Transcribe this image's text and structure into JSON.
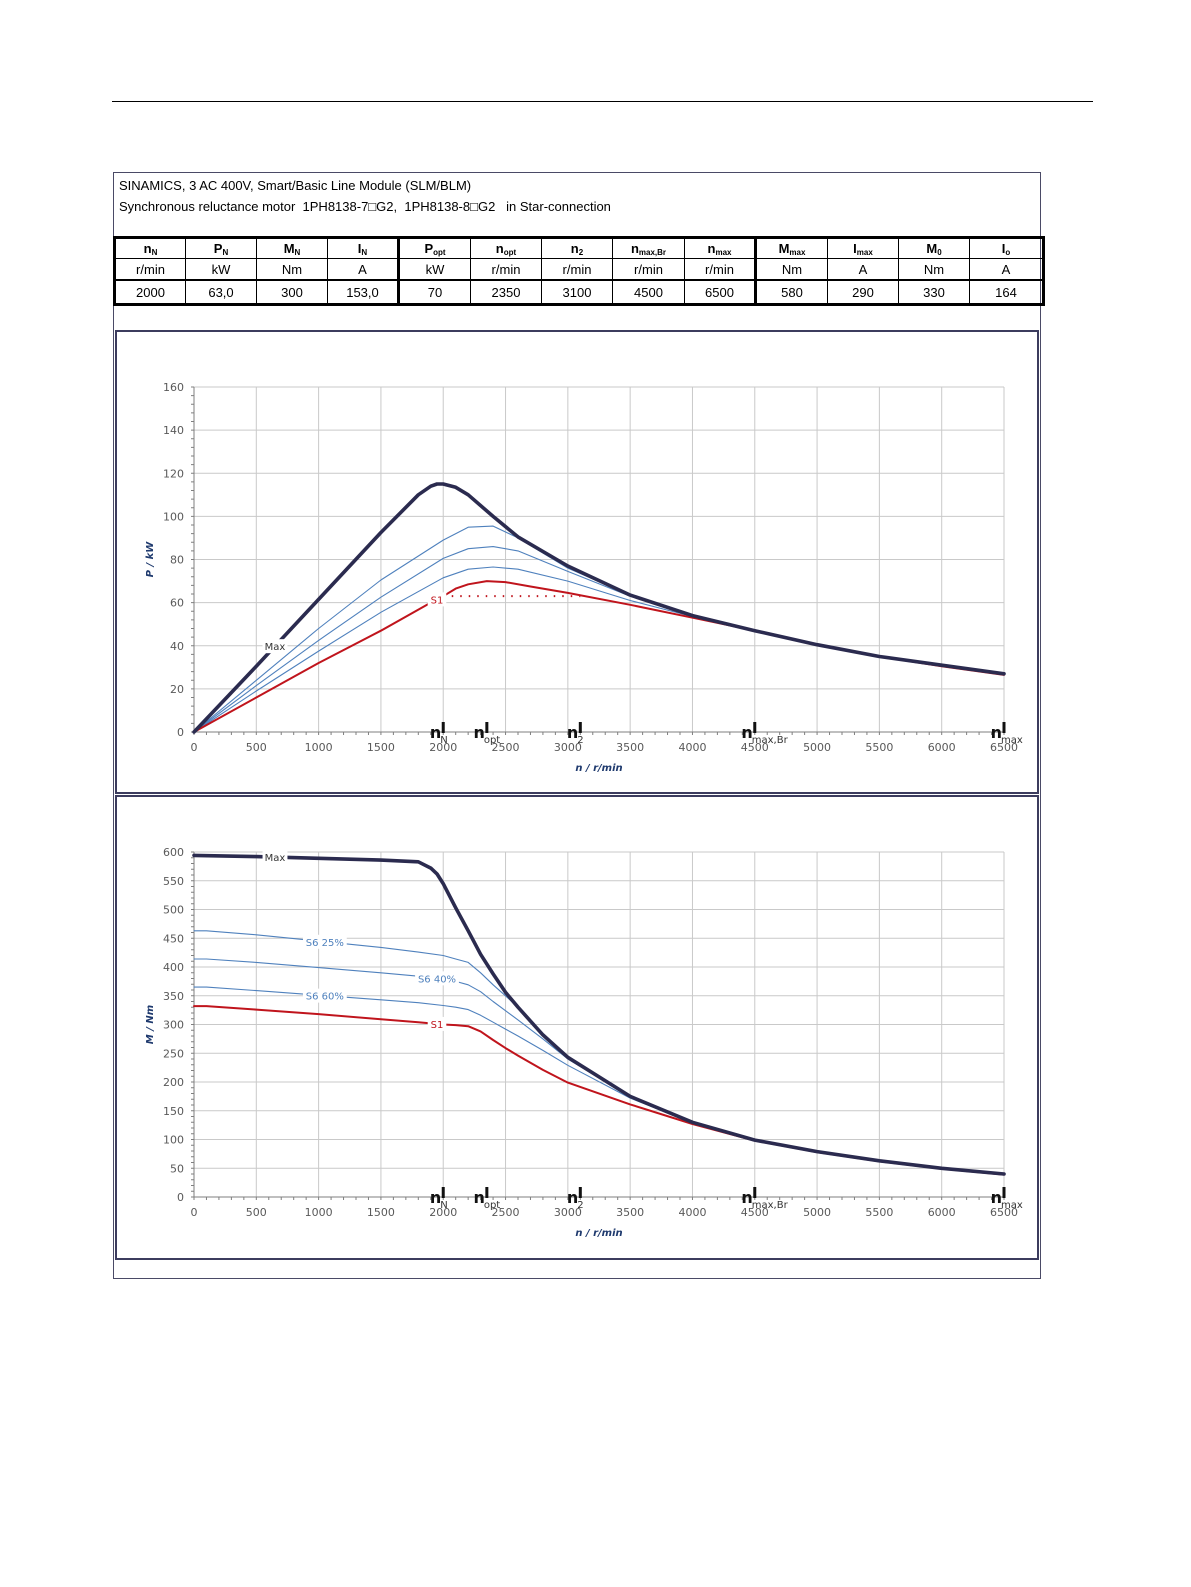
{
  "header": {
    "line1": "SINAMICS, 3 AC 400V, Smart/Basic Line Module (SLM/BLM)",
    "line2": "Synchronous reluctance motor  1PH8138-7□G2,  1PH8138-8□G2   in Star-connection"
  },
  "table": {
    "columns": [
      {
        "sym": "n",
        "sub": "N",
        "unit": "r/min",
        "value": "2000"
      },
      {
        "sym": "P",
        "sub": "N",
        "unit": "kW",
        "value": "63,0"
      },
      {
        "sym": "M",
        "sub": "N",
        "unit": "Nm",
        "value": "300"
      },
      {
        "sym": "I",
        "sub": "N",
        "unit": "A",
        "value": "153,0"
      },
      {
        "sym": "P",
        "sub": "opt",
        "unit": "kW",
        "value": "70"
      },
      {
        "sym": "n",
        "sub": "opt",
        "unit": "r/min",
        "value": "2350"
      },
      {
        "sym": "n",
        "sub": "2",
        "unit": "r/min",
        "value": "3100"
      },
      {
        "sym": "n",
        "sub": "max,Br",
        "unit": "r/min",
        "value": "4500"
      },
      {
        "sym": "n",
        "sub": "max",
        "unit": "r/min",
        "value": "6500"
      },
      {
        "sym": "M",
        "sub": "max",
        "unit": "Nm",
        "value": "580"
      },
      {
        "sym": "I",
        "sub": "max",
        "unit": "A",
        "value": "290"
      },
      {
        "sym": "M",
        "sub": "0",
        "unit": "Nm",
        "value": "330"
      },
      {
        "sym": "I",
        "sub": "o",
        "unit": "A",
        "value": "164"
      }
    ]
  },
  "colors": {
    "max": "#2b2b4f",
    "s6": "#4f81bd",
    "s1": "#c0141c",
    "grid": "#c9c9c9",
    "axis": "#1f3a6e"
  },
  "chart_data": [
    {
      "type": "line",
      "xlabel": "n / r/min",
      "ylabel": "P / kW",
      "xlim": [
        0,
        6500
      ],
      "ylim": [
        0,
        160
      ],
      "xticks": [
        0,
        500,
        1000,
        1500,
        2000,
        2500,
        3000,
        3500,
        4000,
        4500,
        5000,
        5500,
        6000,
        6500
      ],
      "yticks": [
        0,
        20,
        40,
        60,
        80,
        100,
        120,
        140,
        160
      ],
      "grid": true,
      "markers": [
        {
          "big": "n",
          "sub": "N",
          "x": 2000
        },
        {
          "big": "n",
          "sub": "opt",
          "x": 2350
        },
        {
          "big": "n",
          "sub": "2",
          "x": 3100
        },
        {
          "big": "n",
          "sub": "max,Br",
          "x": 4500
        },
        {
          "big": "n",
          "sub": "max",
          "x": 6500
        }
      ],
      "series": [
        {
          "name": "Max",
          "style": "max",
          "x": [
            0,
            500,
            1000,
            1500,
            1800,
            1900,
            1950,
            2000,
            2100,
            2200,
            2400,
            2600,
            3000,
            3500,
            4000,
            4500,
            5000,
            5500,
            6000,
            6500
          ],
          "y": [
            0,
            30.5,
            61.5,
            92.5,
            110,
            114,
            115,
            115,
            113.5,
            110,
            100,
            90.5,
            77,
            63.5,
            54,
            47,
            40.5,
            35,
            31,
            27
          ]
        },
        {
          "name": "S6 25%",
          "style": "s6",
          "x": [
            0,
            500,
            1000,
            1500,
            2000,
            2200,
            2400,
            2600,
            3000,
            3500,
            4000,
            4500,
            5000,
            5500,
            6000,
            6500
          ],
          "y": [
            0,
            24,
            48,
            70.5,
            89,
            95,
            95.5,
            90,
            76,
            63.5,
            54,
            47,
            40.5,
            35,
            31,
            27
          ]
        },
        {
          "name": "S6 40%",
          "style": "s6",
          "x": [
            0,
            500,
            1000,
            1500,
            2000,
            2200,
            2400,
            2600,
            3000,
            3500,
            4000,
            4500,
            5000,
            5500,
            6000,
            6500
          ],
          "y": [
            0,
            21.5,
            42.5,
            62.5,
            80.5,
            85,
            86,
            84,
            74.5,
            63,
            54,
            47,
            40.5,
            35,
            31,
            27
          ]
        },
        {
          "name": "S6 60%",
          "style": "s6",
          "x": [
            0,
            500,
            1000,
            1500,
            2000,
            2200,
            2400,
            2600,
            3000,
            3500,
            4000,
            4500,
            5000,
            5500,
            6000,
            6500
          ],
          "y": [
            0,
            19,
            37.5,
            55.5,
            71.5,
            75.5,
            76.5,
            75.5,
            70,
            61,
            53.5,
            47,
            40.5,
            35,
            31,
            27
          ]
        },
        {
          "name": "S1",
          "style": "s1",
          "x": [
            0,
            500,
            1000,
            1500,
            1900,
            2000,
            2100,
            2200,
            2350,
            2500,
            2700,
            3000,
            3500,
            4000,
            4500,
            5000,
            5500,
            6000,
            6500
          ],
          "y": [
            0,
            16,
            32,
            47,
            60,
            63,
            66.5,
            68.5,
            70,
            69.5,
            67.5,
            64.5,
            59,
            53,
            47,
            40.5,
            35,
            30.5,
            26.5
          ]
        }
      ],
      "reference_line": {
        "x": [
          2000,
          3100
        ],
        "y": 63
      },
      "labels": [
        {
          "text": "Max",
          "series": "Max",
          "x": 650
        },
        {
          "text": "S1",
          "series": "S1",
          "x": 1950
        }
      ]
    },
    {
      "type": "line",
      "xlabel": "n / r/min",
      "ylabel": "M / Nm",
      "xlim": [
        0,
        6500
      ],
      "ylim": [
        0,
        600
      ],
      "xticks": [
        0,
        500,
        1000,
        1500,
        2000,
        2500,
        3000,
        3500,
        4000,
        4500,
        5000,
        5500,
        6000,
        6500
      ],
      "yticks": [
        0,
        50,
        100,
        150,
        200,
        250,
        300,
        350,
        400,
        450,
        500,
        550,
        600
      ],
      "grid": true,
      "markers": [
        {
          "big": "n",
          "sub": "N",
          "x": 2000
        },
        {
          "big": "n",
          "sub": "opt",
          "x": 2350
        },
        {
          "big": "n",
          "sub": "2",
          "x": 3100
        },
        {
          "big": "n",
          "sub": "max,Br",
          "x": 4500
        },
        {
          "big": "n",
          "sub": "max",
          "x": 6500
        }
      ],
      "series": [
        {
          "name": "Max",
          "style": "max",
          "x": [
            0,
            500,
            1000,
            1500,
            1800,
            1900,
            1950,
            2000,
            2100,
            2200,
            2300,
            2400,
            2500,
            2600,
            2800,
            3000,
            3500,
            4000,
            4500,
            5000,
            5500,
            6000,
            6500
          ],
          "y": [
            594,
            592,
            589,
            586,
            583,
            572,
            562,
            545,
            503,
            463,
            422,
            388,
            356,
            330,
            282,
            243,
            175,
            130,
            99,
            79,
            63,
            50,
            40
          ]
        },
        {
          "name": "S6 25%",
          "style": "s6",
          "x": [
            0,
            100,
            500,
            1000,
            1500,
            1800,
            2000,
            2100,
            2200,
            2300,
            2400,
            2500,
            2600,
            2800,
            3000,
            3500,
            4000,
            4500,
            5000,
            5500,
            6000,
            6500
          ],
          "y": [
            463,
            463,
            456,
            445,
            434,
            426,
            420,
            414,
            408,
            390,
            369,
            350,
            330,
            282,
            243,
            175,
            130,
            99,
            79,
            63,
            50,
            40
          ]
        },
        {
          "name": "S6 40%",
          "style": "s6",
          "x": [
            0,
            100,
            500,
            1000,
            1500,
            1800,
            2000,
            2100,
            2200,
            2300,
            2400,
            2500,
            2600,
            2800,
            3000,
            3500,
            4000,
            4500,
            5000,
            5500,
            6000,
            6500
          ],
          "y": [
            414,
            414,
            408,
            399,
            390,
            384,
            379,
            375,
            369,
            357,
            340,
            324,
            308,
            275,
            240,
            175,
            130,
            99,
            79,
            63,
            50,
            40
          ]
        },
        {
          "name": "S6 60%",
          "style": "s6",
          "x": [
            0,
            100,
            500,
            1000,
            1500,
            1800,
            2000,
            2100,
            2200,
            2300,
            2400,
            2500,
            2600,
            2800,
            3000,
            3500,
            4000,
            4500,
            5000,
            5500,
            6000,
            6500
          ],
          "y": [
            365,
            365,
            359,
            351,
            343,
            338,
            333,
            330,
            326,
            316,
            304,
            292,
            280,
            255,
            229,
            172,
            129,
            99,
            79,
            63,
            50,
            40
          ]
        },
        {
          "name": "S1",
          "style": "s1",
          "x": [
            0,
            100,
            500,
            1000,
            1500,
            1800,
            1900,
            2000,
            2100,
            2200,
            2300,
            2400,
            2500,
            2600,
            2800,
            3000,
            3500,
            4000,
            4500,
            5000,
            5500,
            6000,
            6500
          ],
          "y": [
            332,
            332,
            326,
            318,
            309,
            304,
            302,
            300,
            299,
            297,
            288,
            273,
            259,
            246,
            221,
            199,
            161,
            127,
            98,
            78,
            62,
            49,
            39
          ]
        }
      ],
      "labels": [
        {
          "text": "Max",
          "series": "Max",
          "x": 650
        },
        {
          "text": "S6 25%",
          "series": "S6 25%",
          "x": 1050
        },
        {
          "text": "S6 40%",
          "series": "S6 40%",
          "x": 1950
        },
        {
          "text": "S6 60%",
          "series": "S6 60%",
          "x": 1050
        },
        {
          "text": "S1",
          "series": "S1",
          "x": 1950
        }
      ]
    }
  ]
}
